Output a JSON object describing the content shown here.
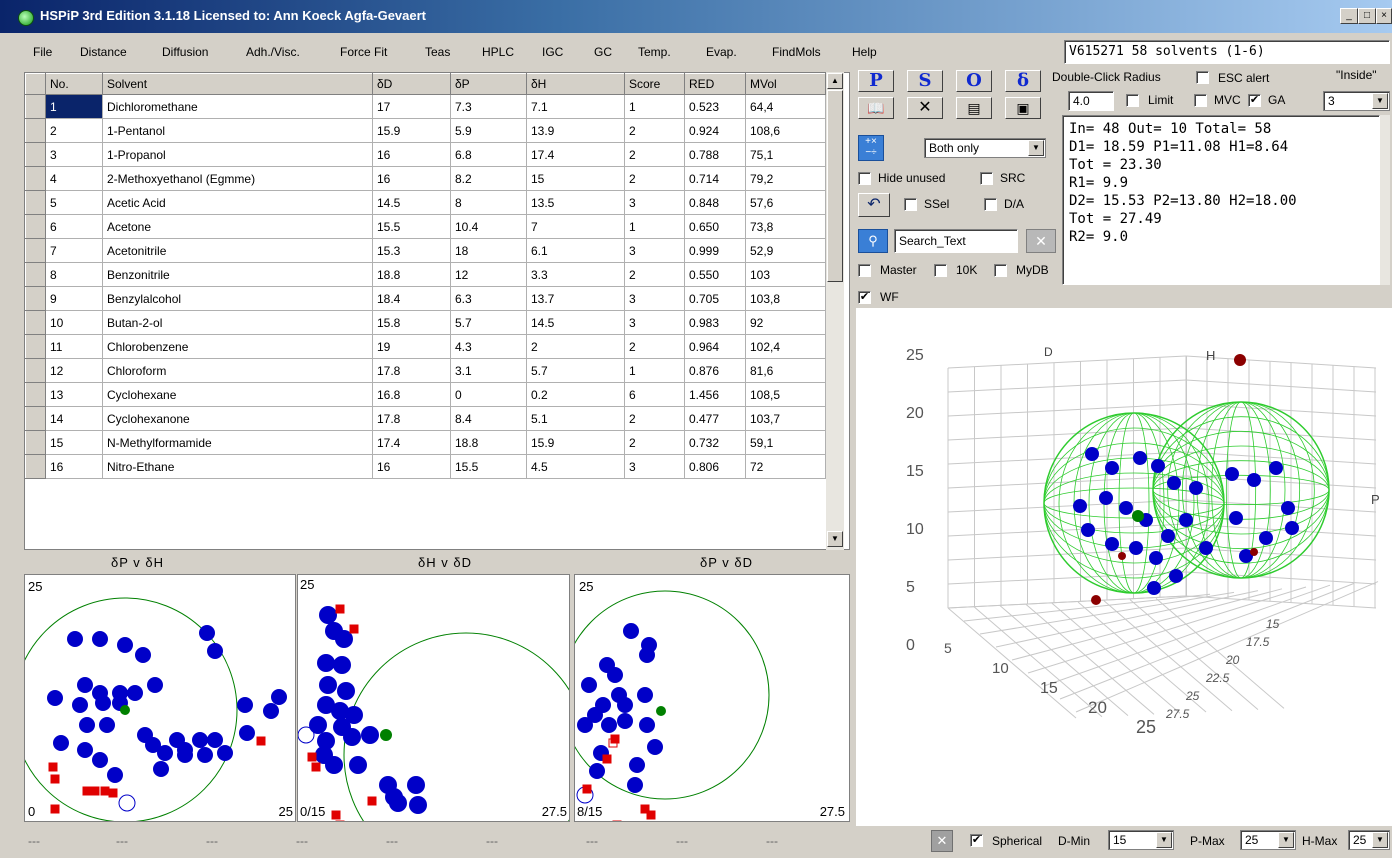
{
  "window": {
    "title": "HSPiP 3rd Edition 3.1.18 Licensed to: Ann Koeck Agfa-Gevaert"
  },
  "menu": [
    "File",
    "Distance",
    "Diffusion",
    "Adh./Visc.",
    "Force Fit",
    "Teas",
    "HPLC",
    "IGC",
    "GC",
    "Temp.",
    "Evap.",
    "FindMols",
    "Help"
  ],
  "dataset_label": "V615271 58 solvents (1-6)",
  "table": {
    "headers": [
      "No.",
      "Solvent",
      "δD",
      "δP",
      "δH",
      "Score",
      "RED",
      "MVol"
    ],
    "rows": [
      [
        "1",
        "Dichloromethane",
        "17",
        "7.3",
        "7.1",
        "1",
        "0.523",
        "64,4"
      ],
      [
        "2",
        "1-Pentanol",
        "15.9",
        "5.9",
        "13.9",
        "2",
        "0.924",
        "108,6"
      ],
      [
        "3",
        "1-Propanol",
        "16",
        "6.8",
        "17.4",
        "2",
        "0.788",
        "75,1"
      ],
      [
        "4",
        "2-Methoxyethanol (Egmme)",
        "16",
        "8.2",
        "15",
        "2",
        "0.714",
        "79,2"
      ],
      [
        "5",
        "Acetic Acid",
        "14.5",
        "8",
        "13.5",
        "3",
        "0.848",
        "57,6"
      ],
      [
        "6",
        "Acetone",
        "15.5",
        "10.4",
        "7",
        "1",
        "0.650",
        "73,8"
      ],
      [
        "7",
        "Acetonitrile",
        "15.3",
        "18",
        "6.1",
        "3",
        "0.999",
        "52,9"
      ],
      [
        "8",
        "Benzonitrile",
        "18.8",
        "12",
        "3.3",
        "2",
        "0.550",
        "103"
      ],
      [
        "9",
        "Benzylalcohol",
        "18.4",
        "6.3",
        "13.7",
        "3",
        "0.705",
        "103,8"
      ],
      [
        "10",
        "Butan-2-ol",
        "15.8",
        "5.7",
        "14.5",
        "3",
        "0.983",
        "92"
      ],
      [
        "11",
        "Chlorobenzene",
        "19",
        "4.3",
        "2",
        "2",
        "0.964",
        "102,4"
      ],
      [
        "12",
        "Chloroform",
        "17.8",
        "3.1",
        "5.7",
        "1",
        "0.876",
        "81,6"
      ],
      [
        "13",
        "Cyclohexane",
        "16.8",
        "0",
        "0.2",
        "6",
        "1.456",
        "108,5"
      ],
      [
        "14",
        "Cyclohexanone",
        "17.8",
        "8.4",
        "5.1",
        "2",
        "0.477",
        "103,7"
      ],
      [
        "15",
        "N-Methylformamide",
        "17.4",
        "18.8",
        "15.9",
        "2",
        "0.732",
        "59,1"
      ],
      [
        "16",
        "Nitro-Ethane",
        "16",
        "15.5",
        "4.5",
        "3",
        "0.806",
        "72"
      ]
    ]
  },
  "buttons": {
    "p": "P",
    "s": "S",
    "o": "O",
    "delta": "δ"
  },
  "controls": {
    "double_click_radius": "Double-Click Radius",
    "esc_alert": "ESC alert",
    "inside": "\"Inside\"",
    "radius_value": "4.0",
    "limit": "Limit",
    "mvc": "MVC",
    "ga": "GA",
    "ga_value": "3",
    "both_only": "Both only",
    "hide_unused": "Hide unused",
    "src": "SRC",
    "ssel": "SSel",
    "da": "D/A",
    "search_text": "Search_Text",
    "master": "Master",
    "tenk": "10K",
    "mydb": "MyDB",
    "wf": "WF"
  },
  "results_lines": [
    "In= 48 Out= 10 Total= 58",
    "D1= 18.59 P1=11.08 H1=8.64",
    "Tot = 23.30",
    "R1= 9.9",
    "D2= 15.53 P2=13.80 H2=18.00",
    "Tot = 27.49",
    "R2= 9.0"
  ],
  "plots": {
    "titles": [
      "δP v δH",
      "δH v δD",
      "δP v δD"
    ],
    "p1": {
      "tl": "25",
      "bl": "0",
      "br": "25"
    },
    "p2": {
      "tl": "25",
      "bl": "0/15",
      "br": "27.5"
    },
    "p3": {
      "tl": "25",
      "bl": "8/15",
      "br": "27.5"
    }
  },
  "plot3d": {
    "axis_d": "D",
    "axis_h": "H",
    "axis_p": "P",
    "yticks": [
      "25",
      "20",
      "15",
      "10",
      "5",
      "0"
    ],
    "dticks": [
      "5",
      "10",
      "15",
      "20",
      "25"
    ],
    "hticks": [
      "27.5",
      "25",
      "22.5",
      "20",
      "17.5",
      "15"
    ]
  },
  "status": {
    "dashes": [
      "---",
      "---",
      "---",
      "---",
      "---",
      "---",
      "---",
      "---",
      "---",
      "---",
      "---",
      "---",
      "---"
    ],
    "spherical": "Spherical",
    "dmin_label": "D-Min",
    "dmin": "15",
    "pmax_label": "P-Max",
    "pmax": "25",
    "hmax_label": "H-Max",
    "hmax": "25"
  },
  "colors": {
    "titlebar": "#0a246a",
    "inside": "#0000c8",
    "outside": "#e00000",
    "center": "#008000",
    "sphere": "#2ecc2e"
  }
}
